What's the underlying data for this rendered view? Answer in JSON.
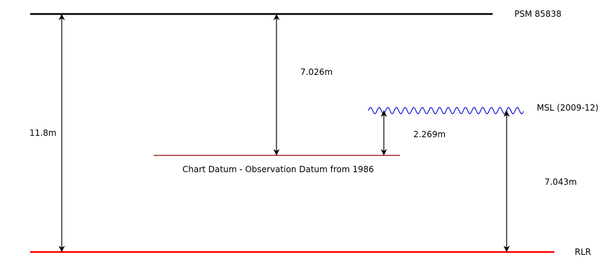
{
  "levels": {
    "psm": {
      "label": "PSM 85838",
      "color": "#000000"
    },
    "msl": {
      "label": "MSL (2009-12)",
      "color": "#0000cc"
    },
    "chart_datum": {
      "label": "Chart Datum - Observation Datum from 1986",
      "color": "#990000"
    },
    "rlr": {
      "label": "RLR",
      "color": "#ff0000"
    }
  },
  "measurements": {
    "psm_to_rlr": "11.8m",
    "psm_to_chart_datum": "7.026m",
    "msl_to_chart_datum": "2.269m",
    "msl_to_rlr": "7.043m"
  },
  "arrow_color": "#000000"
}
